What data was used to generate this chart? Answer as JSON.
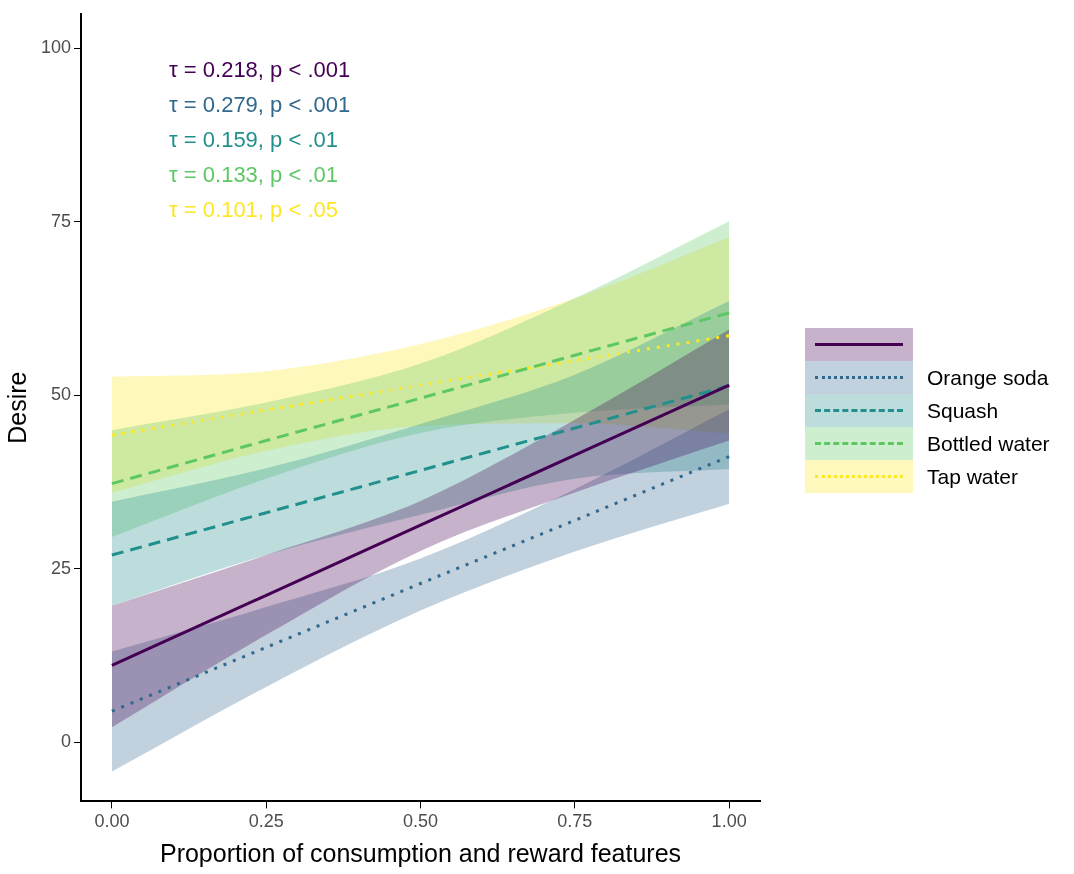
{
  "chart_data": {
    "type": "line",
    "xlabel": "Proportion of consumption and reward features",
    "ylabel": "Desire",
    "x": [
      0,
      0.25,
      0.5,
      0.75,
      1
    ],
    "series": [
      {
        "color": "#440154",
        "line_style": "solid",
        "values": [
          11.1,
          21.2,
          31.3,
          41.4,
          51.5
        ],
        "lower": [
          2.2,
          15.5,
          27.6,
          36,
          43.5
        ],
        "upper": [
          19.7,
          27,
          34.8,
          46.5,
          59.5
        ]
      },
      {
        "name": "Orange soda",
        "color": "#31688e",
        "line_style": "dotted",
        "values": [
          4.5,
          13.7,
          22.9,
          32,
          41.2
        ],
        "lower": [
          -4.2,
          8,
          19,
          27.5,
          34.4
        ],
        "upper": [
          13.1,
          19.5,
          26.5,
          36.5,
          48
        ]
      },
      {
        "name": "Squash",
        "color": "#21908c",
        "line_style": "dashed",
        "values": [
          27,
          33.1,
          39.2,
          45.3,
          51.4
        ],
        "lower": [
          19.7,
          27,
          32.8,
          38,
          39.4
        ],
        "upper": [
          34.7,
          39.5,
          45.9,
          53,
          63.6
        ]
      },
      {
        "name": "Bottled water",
        "color": "#5dc863",
        "line_style": "dashed",
        "values": [
          37.3,
          43.5,
          49.6,
          55.8,
          61.9
        ],
        "lower": [
          29.6,
          38,
          44.6,
          47.5,
          48.7
        ],
        "upper": [
          45,
          49,
          54.6,
          64,
          75.1
        ]
      },
      {
        "name": "Tap water",
        "color": "#fde725",
        "line_style": "dotted",
        "values": [
          44.3,
          47.9,
          51.5,
          55,
          58.6
        ],
        "lower": [
          36,
          42,
          45.6,
          46,
          44.5
        ],
        "upper": [
          52.7,
          53.5,
          57.4,
          64,
          72.8
        ]
      }
    ],
    "annotations": [
      "τ = 0.218, p < .001",
      "τ = 0.279, p < .001",
      "τ = 0.159, p < .01",
      "τ = 0.133, p < .01",
      "τ = 0.101, p < .05"
    ],
    "xlim": [
      -0.05,
      1.05
    ],
    "xticks": [
      {
        "value": 0,
        "label": "0.00"
      },
      {
        "value": 0.25,
        "label": "0.25"
      },
      {
        "value": 0.5,
        "label": "0.50"
      },
      {
        "value": 0.75,
        "label": "0.75"
      },
      {
        "value": 1,
        "label": "1.00"
      }
    ],
    "ylim": [
      -8.5,
      105
    ],
    "yticks": [
      0,
      25,
      50,
      75,
      100
    ],
    "grid": false,
    "legend": "right",
    "marker": "none"
  }
}
